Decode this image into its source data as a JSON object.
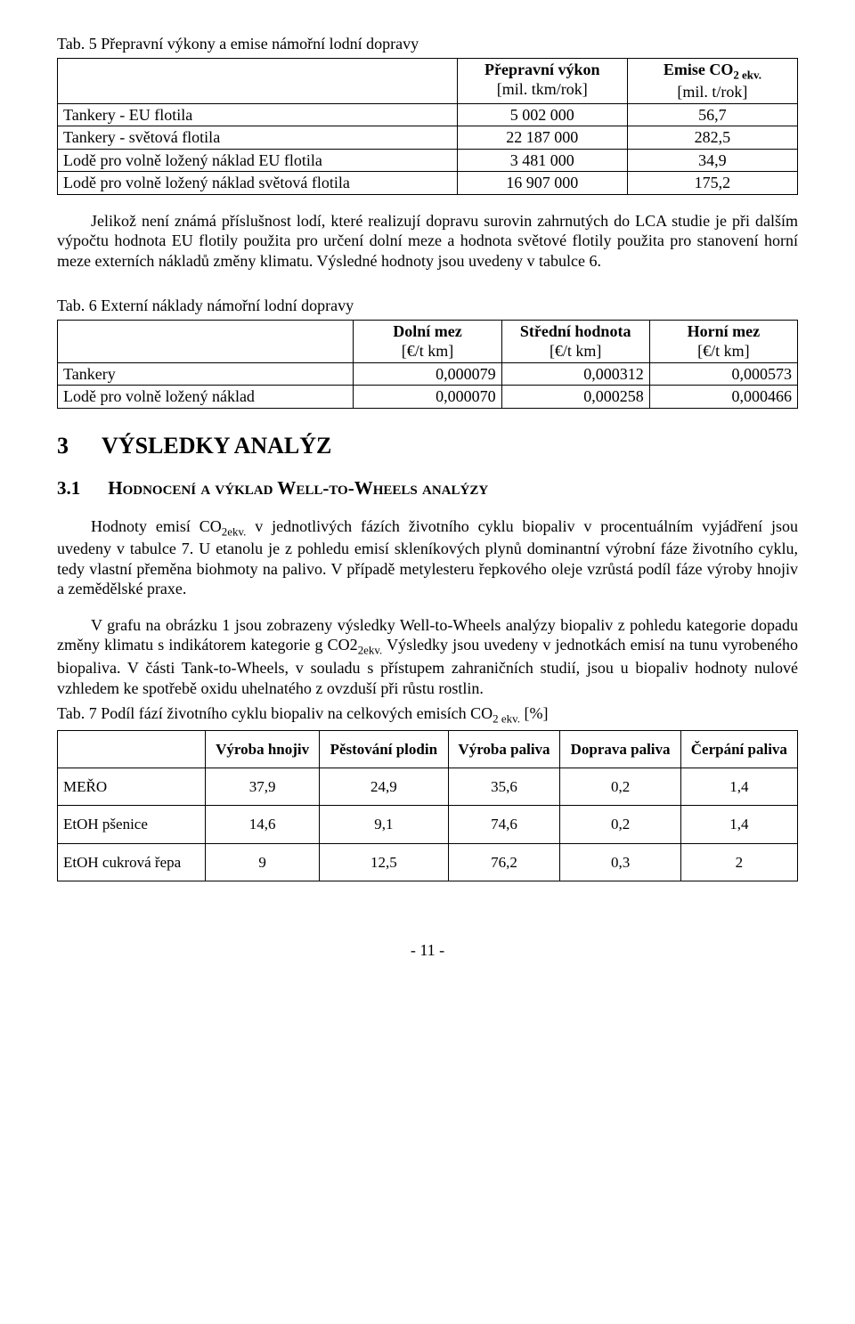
{
  "table5": {
    "caption": "Tab. 5  Přepravní výkony a emise námořní lodní dopravy",
    "col1": "Přepravní výkon",
    "col1_unit": "[mil. tkm/rok]",
    "col2_html": "Emise CO<sub>2 ekv.</sub>",
    "col2_unit": "[mil. t/rok]",
    "rows": [
      {
        "label": "Tankery - EU flotila",
        "v1": "5 002 000",
        "v2": "56,7"
      },
      {
        "label": "Tankery - světová flotila",
        "v1": "22 187 000",
        "v2": "282,5"
      },
      {
        "label": "Lodě pro volně ložený náklad EU flotila",
        "v1": "3 481 000",
        "v2": "34,9"
      },
      {
        "label": "Lodě pro volně ložený náklad světová flotila",
        "v1": "16 907 000",
        "v2": "175,2"
      }
    ]
  },
  "para1": "Jelikož není známá příslušnost lodí, které realizují dopravu surovin zahrnutých do LCA studie je při dalším výpočtu hodnota EU flotily použita pro určení dolní meze a hodnota světové flotily použita pro stanovení horní meze externích nákladů změny klimatu. Výsledné hodnoty jsou uvedeny v tabulce 6.",
  "table6": {
    "caption": "Tab. 6  Externí náklady námořní lodní dopravy",
    "h1": "Dolní mez",
    "h1u": "[€/t km]",
    "h2": "Střední hodnota",
    "h2u": "[€/t km]",
    "h3": "Horní mez",
    "h3u": "[€/t km]",
    "rows": [
      {
        "label": "Tankery",
        "a": "0,000079",
        "b": "0,000312",
        "c": "0,000573"
      },
      {
        "label": "Lodě pro volně ložený náklad",
        "a": "0,000070",
        "b": "0,000258",
        "c": "0,000466"
      }
    ]
  },
  "sec3": {
    "num": "3",
    "title": "VÝSLEDKY ANALÝZ"
  },
  "sec31": {
    "num": "3.1",
    "title_html": "H<span style='font-variant:small-caps'>odnocení a výklad</span> W<span style='font-variant:small-caps'>ell</span>-<span style='font-variant:small-caps'>to</span>-W<span style='font-variant:small-caps'>heels analýzy</span>"
  },
  "para2_html": "Hodnoty emisí CO<sub>2ekv.</sub> v jednotlivých fázích životního cyklu biopaliv v procentuálním vyjádření jsou uvedeny v tabulce 7. U etanolu je z pohledu emisí skleníkových plynů dominantní výrobní fáze životního cyklu, tedy vlastní přeměna biohmoty na palivo. V případě metylesteru řepkového oleje vzrůstá podíl fáze výroby hnojiv a zemědělské praxe.",
  "para3_html": "V grafu na obrázku 1 jsou zobrazeny výsledky Well-to-Wheels analýzy biopaliv z pohledu kategorie dopadu změny klimatu s indikátorem kategorie g CO2<sub>2ekv.</sub> Výsledky jsou uvedeny v jednotkách emisí na tunu vyrobeného biopaliva. V části Tank-to-Wheels, v souladu s přístupem zahraničních studií, jsou u biopaliv hodnoty nulové vzhledem ke spotřebě oxidu uhelnatého z ovzduší při růstu rostlin.",
  "table7": {
    "caption_html": "Tab. 7  Podíl fází životního cyklu biopaliv na celkových emisích CO<sub>2 ekv.</sub> [%]",
    "headers": [
      "Výroba hnojiv",
      "Pěstování plodin",
      "Výroba paliva",
      "Doprava paliva",
      "Čerpání paliva"
    ],
    "rows": [
      {
        "label": "MEŘO",
        "v": [
          "37,9",
          "24,9",
          "35,6",
          "0,2",
          "1,4"
        ]
      },
      {
        "label": "EtOH pšenice",
        "v": [
          "14,6",
          "9,1",
          "74,6",
          "0,2",
          "1,4"
        ]
      },
      {
        "label": "EtOH cukrová řepa",
        "v": [
          "9",
          "12,5",
          "76,2",
          "0,3",
          "2"
        ]
      }
    ]
  },
  "footer": "- 11 -"
}
